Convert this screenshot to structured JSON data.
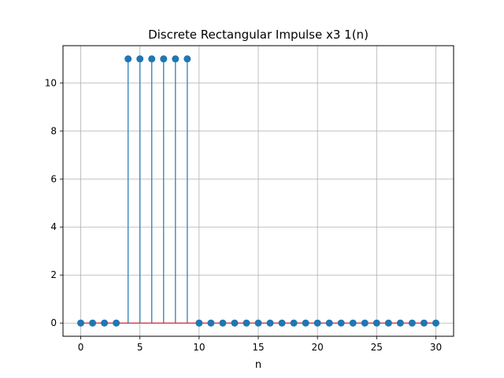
{
  "chart_data": {
    "type": "stem",
    "title": "Discrete Rectangular Impulse x3 1(n)",
    "xlabel": "n",
    "ylabel": "",
    "xlim": [
      -1.5,
      31.5
    ],
    "ylim": [
      -0.55,
      11.55
    ],
    "x_ticks": [
      0,
      5,
      10,
      15,
      20,
      25,
      30
    ],
    "y_ticks": [
      0,
      2,
      4,
      6,
      8,
      10
    ],
    "grid": true,
    "x": [
      0,
      1,
      2,
      3,
      4,
      5,
      6,
      7,
      8,
      9,
      10,
      11,
      12,
      13,
      14,
      15,
      16,
      17,
      18,
      19,
      20,
      21,
      22,
      23,
      24,
      25,
      26,
      27,
      28,
      29,
      30
    ],
    "values": [
      0,
      0,
      0,
      0,
      11,
      11,
      11,
      11,
      11,
      11,
      0,
      0,
      0,
      0,
      0,
      0,
      0,
      0,
      0,
      0,
      0,
      0,
      0,
      0,
      0,
      0,
      0,
      0,
      0,
      0,
      0
    ],
    "colors": {
      "stem": "#1f77b4",
      "marker": "#1f77b4",
      "baseline": "#d62728",
      "grid": "#b0b0b0",
      "axes": "#000000"
    }
  }
}
